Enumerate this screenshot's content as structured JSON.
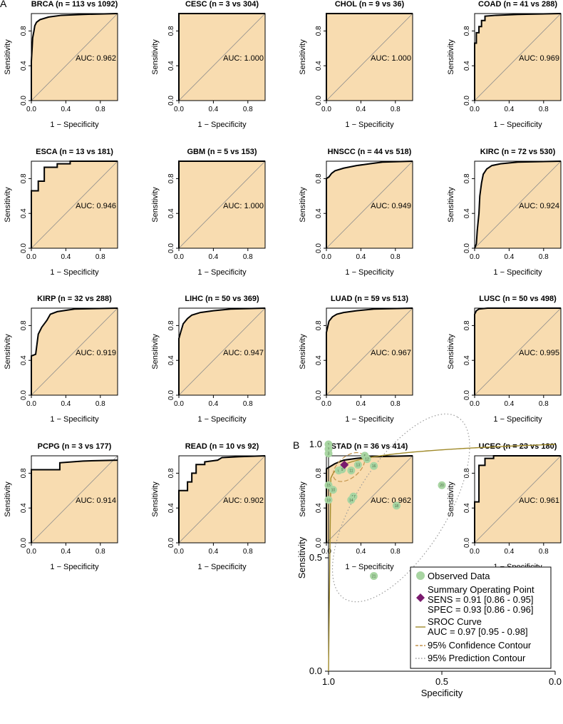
{
  "panel_labels": {
    "a": "A",
    "b": "B"
  },
  "chart_data": [
    {
      "type": "roc-grid",
      "xlabel": "1 − Specificity",
      "ylabel": "Sensitivity",
      "xlim": [
        0,
        1
      ],
      "ylim": [
        0,
        1
      ],
      "xticks": [
        "0.0",
        "0.4",
        "0.8"
      ],
      "xtick_values": [
        0,
        0.4,
        0.8
      ],
      "yticks": [
        "0.0",
        "0.4",
        "0.8"
      ],
      "ytick_values": [
        0,
        0.4,
        0.8
      ],
      "diagonal_color": "#8c8c8c",
      "fill_color": "#f8dcb0",
      "curve_color": "#000000",
      "panels": [
        {
          "title": "BRCA (n = 113 vs 1092)",
          "auc": "AUC: 0.962",
          "roc": [
            [
              0,
              0
            ],
            [
              0,
              0.45
            ],
            [
              0.01,
              0.62
            ],
            [
              0.015,
              0.72
            ],
            [
              0.03,
              0.8
            ],
            [
              0.04,
              0.86
            ],
            [
              0.06,
              0.9
            ],
            [
              0.1,
              0.93
            ],
            [
              0.2,
              0.96
            ],
            [
              0.35,
              0.98
            ],
            [
              0.6,
              0.99
            ],
            [
              1,
              1
            ]
          ]
        },
        {
          "title": "CESC (n = 3 vs 304)",
          "auc": "AUC: 1.000",
          "roc": [
            [
              0,
              0
            ],
            [
              0,
              1
            ],
            [
              1,
              1
            ]
          ]
        },
        {
          "title": "CHOL (n = 9 vs 36)",
          "auc": "AUC: 1.000",
          "roc": [
            [
              0,
              0
            ],
            [
              0,
              1
            ],
            [
              1,
              1
            ]
          ]
        },
        {
          "title": "COAD (n = 41 vs 288)",
          "auc": "AUC: 0.969",
          "roc": [
            [
              0,
              0
            ],
            [
              0,
              0.66
            ],
            [
              0.02,
              0.66
            ],
            [
              0.02,
              0.78
            ],
            [
              0.05,
              0.78
            ],
            [
              0.05,
              0.85
            ],
            [
              0.08,
              0.85
            ],
            [
              0.08,
              0.92
            ],
            [
              0.12,
              0.92
            ],
            [
              0.12,
              0.97
            ],
            [
              0.25,
              0.98
            ],
            [
              0.5,
              0.99
            ],
            [
              1,
              1
            ]
          ]
        },
        {
          "title": "ESCA (n = 13 vs 181)",
          "auc": "AUC: 0.946",
          "roc": [
            [
              0,
              0
            ],
            [
              0,
              0.66
            ],
            [
              0.08,
              0.66
            ],
            [
              0.08,
              0.77
            ],
            [
              0.15,
              0.77
            ],
            [
              0.15,
              0.93
            ],
            [
              0.3,
              0.93
            ],
            [
              0.3,
              0.97
            ],
            [
              0.45,
              0.97
            ],
            [
              0.45,
              1
            ],
            [
              1,
              1
            ]
          ]
        },
        {
          "title": "GBM (n = 5 vs 153)",
          "auc": "AUC: 1.000",
          "roc": [
            [
              0,
              0
            ],
            [
              0,
              1
            ],
            [
              1,
              1
            ]
          ]
        },
        {
          "title": "HNSCC (n = 44 vs 518)",
          "auc": "AUC: 0.949",
          "roc": [
            [
              0,
              0
            ],
            [
              0,
              0.8
            ],
            [
              0.03,
              0.82
            ],
            [
              0.06,
              0.86
            ],
            [
              0.1,
              0.89
            ],
            [
              0.2,
              0.92
            ],
            [
              0.35,
              0.95
            ],
            [
              0.5,
              0.97
            ],
            [
              0.65,
              0.99
            ],
            [
              1,
              1
            ]
          ]
        },
        {
          "title": "KIRC (n = 72 vs 530)",
          "auc": "AUC: 0.924",
          "roc": [
            [
              0,
              0
            ],
            [
              0.02,
              0.05
            ],
            [
              0.03,
              0.2
            ],
            [
              0.05,
              0.4
            ],
            [
              0.06,
              0.6
            ],
            [
              0.08,
              0.75
            ],
            [
              0.1,
              0.85
            ],
            [
              0.14,
              0.91
            ],
            [
              0.2,
              0.95
            ],
            [
              0.3,
              0.97
            ],
            [
              0.5,
              0.99
            ],
            [
              1,
              1
            ]
          ]
        },
        {
          "title": "KIRP (n = 32 vs 288)",
          "auc": "AUC: 0.919",
          "roc": [
            [
              0,
              0
            ],
            [
              0,
              0.45
            ],
            [
              0.05,
              0.47
            ],
            [
              0.08,
              0.7
            ],
            [
              0.12,
              0.78
            ],
            [
              0.18,
              0.86
            ],
            [
              0.22,
              0.93
            ],
            [
              0.3,
              0.96
            ],
            [
              0.5,
              0.99
            ],
            [
              1,
              1
            ]
          ]
        },
        {
          "title": "LIHC (n = 50 vs 369)",
          "auc": "AUC: 0.947",
          "roc": [
            [
              0,
              0
            ],
            [
              0,
              0.65
            ],
            [
              0.02,
              0.72
            ],
            [
              0.05,
              0.82
            ],
            [
              0.1,
              0.88
            ],
            [
              0.15,
              0.92
            ],
            [
              0.25,
              0.95
            ],
            [
              0.4,
              0.97
            ],
            [
              0.6,
              0.99
            ],
            [
              1,
              1
            ]
          ]
        },
        {
          "title": "LUAD (n = 59 vs 513)",
          "auc": "AUC: 0.967",
          "roc": [
            [
              0,
              0
            ],
            [
              0,
              0.72
            ],
            [
              0.03,
              0.85
            ],
            [
              0.07,
              0.9
            ],
            [
              0.12,
              0.93
            ],
            [
              0.2,
              0.95
            ],
            [
              0.35,
              0.97
            ],
            [
              0.55,
              0.99
            ],
            [
              1,
              1
            ]
          ]
        },
        {
          "title": "LUSC (n = 50 vs 498)",
          "auc": "AUC: 0.995",
          "roc": [
            [
              0,
              0
            ],
            [
              0,
              0.93
            ],
            [
              0.02,
              0.97
            ],
            [
              0.05,
              0.99
            ],
            [
              0.15,
              1
            ],
            [
              1,
              1
            ]
          ]
        },
        {
          "title": "PCPG (n = 3 vs 177)",
          "auc": "AUC: 0.914",
          "roc": [
            [
              0,
              0
            ],
            [
              0,
              0.84
            ],
            [
              0.33,
              0.84
            ],
            [
              0.33,
              0.92
            ],
            [
              0.6,
              0.94
            ],
            [
              1,
              0.95
            ]
          ]
        },
        {
          "title": "READ (n = 10 vs 92)",
          "auc": "AUC: 0.902",
          "roc": [
            [
              0,
              0
            ],
            [
              0,
              0.6
            ],
            [
              0.1,
              0.6
            ],
            [
              0.1,
              0.7
            ],
            [
              0.15,
              0.7
            ],
            [
              0.15,
              0.8
            ],
            [
              0.2,
              0.8
            ],
            [
              0.2,
              0.9
            ],
            [
              0.3,
              0.9
            ],
            [
              0.3,
              0.93
            ],
            [
              0.45,
              0.95
            ],
            [
              0.5,
              0.98
            ],
            [
              0.7,
              0.99
            ],
            [
              1,
              1
            ]
          ]
        },
        {
          "title": "STAD (n = 36 vs 414)",
          "auc": "AUC: 0.962",
          "roc": [
            [
              0,
              0
            ],
            [
              0,
              0.85
            ],
            [
              0.05,
              0.88
            ],
            [
              0.1,
              0.91
            ],
            [
              0.2,
              0.95
            ],
            [
              0.35,
              0.97
            ],
            [
              0.55,
              0.99
            ],
            [
              1,
              1
            ]
          ]
        },
        {
          "title": "UCEC (n = 23 vs 180)",
          "auc": "AUC: 0.961",
          "roc": [
            [
              0,
              0
            ],
            [
              0,
              0.47
            ],
            [
              0.05,
              0.47
            ],
            [
              0.05,
              0.89
            ],
            [
              0.12,
              0.89
            ],
            [
              0.12,
              0.97
            ],
            [
              0.22,
              0.97
            ],
            [
              0.22,
              1
            ],
            [
              1,
              1
            ]
          ]
        }
      ]
    },
    {
      "type": "scatter",
      "xlabel": "Specificity",
      "ylabel": "Sensitivity",
      "xlim": [
        1.0,
        0.0
      ],
      "ylim": [
        0.0,
        1.0
      ],
      "xticks": [
        "1.0",
        "0.5",
        "0.0"
      ],
      "xtick_values": [
        1.0,
        0.5,
        0.0
      ],
      "yticks": [
        "0.0",
        "0.5",
        "1.0"
      ],
      "ytick_values": [
        0.0,
        0.5,
        1.0
      ],
      "points": [
        {
          "label": "1",
          "spec": 1.0,
          "sens": 1.0
        },
        {
          "label": "2",
          "spec": 1.0,
          "sens": 0.98
        },
        {
          "label": "3",
          "spec": 1.0,
          "sens": 0.96
        },
        {
          "label": "5",
          "spec": 0.84,
          "sens": 0.95
        },
        {
          "label": "12",
          "spec": 0.83,
          "sens": 0.935
        },
        {
          "label": "13",
          "spec": 0.87,
          "sens": 0.91
        },
        {
          "label": "16",
          "spec": 0.8,
          "sens": 0.905
        },
        {
          "label": "11",
          "spec": 0.9,
          "sens": 0.885
        },
        {
          "label": "6",
          "spec": 0.955,
          "sens": 0.885
        },
        {
          "label": "9",
          "spec": 0.94,
          "sens": 0.89
        },
        {
          "label": "20",
          "spec": 0.5,
          "sens": 0.82
        },
        {
          "label": "15",
          "spec": 1.0,
          "sens": 0.82
        },
        {
          "label": "10",
          "spec": 0.98,
          "sens": 0.8
        },
        {
          "label": "17",
          "spec": 0.89,
          "sens": 0.77
        },
        {
          "label": "14",
          "spec": 0.9,
          "sens": 0.755
        },
        {
          "label": "19",
          "spec": 1.0,
          "sens": 0.755
        },
        {
          "label": "18",
          "spec": 0.7,
          "sens": 0.73
        },
        {
          "label": "21",
          "spec": 0.8,
          "sens": 0.42
        }
      ],
      "summary_point": {
        "spec": 0.93,
        "sens": 0.91
      },
      "sroc": {
        "auc": 0.97
      },
      "legend": {
        "position": "bottom-right",
        "observed": "Observed Data",
        "summary_title": "Summary Operating Point",
        "summary_sens": "SENS = 0.91 [0.86 - 0.95]",
        "summary_spec": "SPEC = 0.93 [0.86 - 0.96]",
        "sroc_title": "SROC Curve",
        "sroc_auc": "AUC = 0.97 [0.95 - 0.98]",
        "confidence": "95% Confidence Contour",
        "prediction": "95% Prediction Contour"
      },
      "colors": {
        "points": "#a8d5a2",
        "point_text": "#4d6e4a",
        "summary": "#7a1a6e",
        "sroc": "#a08a2a",
        "confidence": "#c4944c",
        "prediction": "#9a9a9a"
      }
    }
  ]
}
